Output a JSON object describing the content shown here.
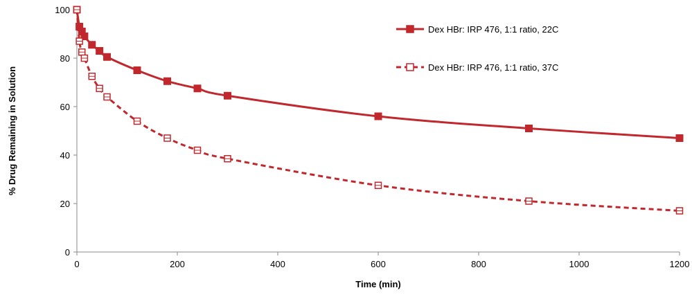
{
  "chart_data": {
    "type": "line",
    "title": "",
    "xlabel": "Time (min)",
    "ylabel": "% Drug Remaining in Solution",
    "xlim": [
      0,
      1200
    ],
    "ylim": [
      0,
      100
    ],
    "xticks": [
      0,
      200,
      400,
      600,
      800,
      1000,
      1200
    ],
    "yticks": [
      0,
      20,
      40,
      60,
      80,
      100
    ],
    "grid": false,
    "legend_position": "top-right",
    "series": [
      {
        "name": "Dex HBr: IRP 476, 1:1 ratio, 22C",
        "color": "#c0282d",
        "line_style": "solid",
        "marker": "filled-square",
        "x": [
          0,
          5,
          10,
          15,
          30,
          45,
          60,
          120,
          180,
          240,
          300,
          600,
          900,
          1200
        ],
        "y": [
          100,
          93,
          91,
          89,
          85.5,
          83,
          80.5,
          75,
          70.5,
          67.5,
          64.5,
          56,
          51,
          47
        ]
      },
      {
        "name": "Dex HBr: IRP 476, 1:1 ratio, 37C",
        "color": "#c0282d",
        "line_style": "dashed",
        "marker": "open-square",
        "x": [
          0,
          5,
          10,
          15,
          30,
          45,
          60,
          120,
          180,
          240,
          300,
          600,
          900,
          1200
        ],
        "y": [
          100,
          87,
          82.5,
          80,
          72.5,
          67.5,
          64,
          54,
          47,
          42,
          38.5,
          27.5,
          21,
          17
        ]
      }
    ]
  }
}
